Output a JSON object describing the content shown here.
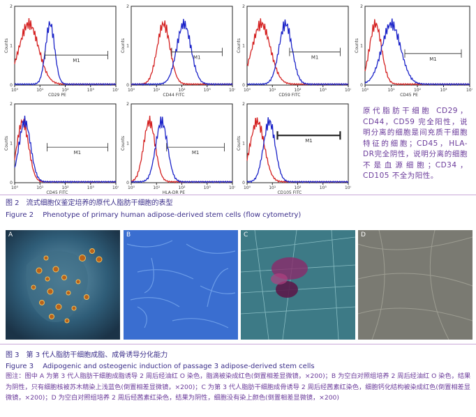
{
  "histograms": [
    {
      "axis_label": "CD29 PE",
      "gate_label": "M1"
    },
    {
      "axis_label": "CD44 FITC",
      "gate_label": "M1"
    },
    {
      "axis_label": "CD59 FITC",
      "gate_label": "M1"
    },
    {
      "axis_label": "CD45 PE",
      "gate_label": "M1"
    },
    {
      "axis_label": "CD45 FITC",
      "gate_label": "M1"
    },
    {
      "axis_label": "HLA-DR PE",
      "gate_label": "M1"
    },
    {
      "axis_label": "CD105 FITC",
      "gate_label": "M1"
    }
  ],
  "axis": {
    "y_title": "Counts",
    "x_ticks": [
      "10⁰",
      "10¹",
      "10²",
      "10³",
      "10⁴"
    ],
    "y_ticks": [
      "0",
      "1",
      "2"
    ]
  },
  "series_colors": {
    "control": "#d42020",
    "stain": "#1a22c8"
  },
  "note": "原代脂肪干细胞 CD29，CD44，CD59 完全阳性，说明分离的细胞是间充质干细胞特征的细胞；CD45，HLA-DR完全阴性，说明分离的细胞不是血源细胞；CD34，CD105 不全为阳性。",
  "figure2": {
    "cn": "图 2　流式细胞仪鉴定培养的原代人脂肪干细胞的表型",
    "en": "Figure 2　 Phenotype of primary human adipose-derived stem cells (flow cytometry)"
  },
  "photos": [
    {
      "label": "A"
    },
    {
      "label": "B"
    },
    {
      "label": "C"
    },
    {
      "label": "D"
    }
  ],
  "figure3": {
    "cn": "图 3　第 3 代人脂肪干细胞成脂、成骨诱导分化能力",
    "en": "Figure 3　 Adipogenic and osteogenic induction of passage 3 adipose-derived stem cells",
    "legend": "图注：图中 A 为第 3 代人脂肪干细胞成脂诱导 2 周后经油红 O 染色，脂滴被染成红色(倒置相差显微镜，×200)；B 为空白对照组培养 2 周后经油红 O 染色，结果为阴性，只有细胞核被苏木精染上浅蓝色(倒置相差显微镜，×200)；C 为第 3 代人脂肪干细胞成骨诱导 2 周后经茜素红染色，细胞钙化结构被染成红色(倒置相差显微镜，×200)；D 为空白对照组培养 2 周后经茜素红染色，结果为阴性，细胞没有染上颜色(倒置相差显微镜，×200)"
  }
}
